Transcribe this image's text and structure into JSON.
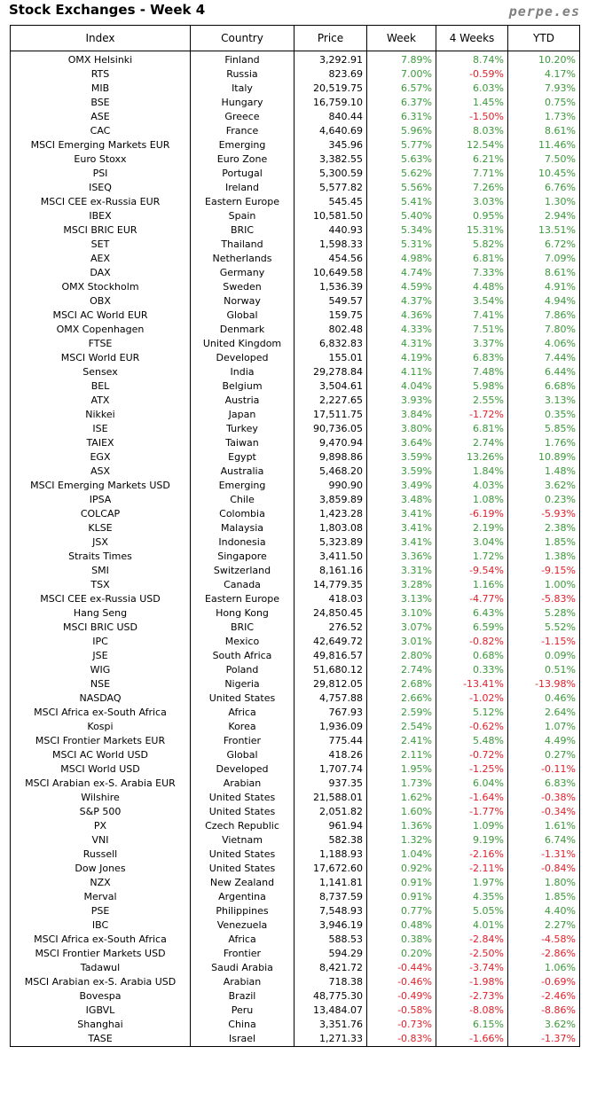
{
  "title": "Stock Exchanges - Week 4",
  "site": "perpe.es",
  "colors": {
    "positive": "#3a9a3a",
    "negative": "#e0202a",
    "site": "#7f7f7f"
  },
  "columns": [
    "Index",
    "Country",
    "Price",
    "Week",
    "4 Weeks",
    "YTD"
  ],
  "rows": [
    [
      "OMX Helsinki",
      "Finland",
      "3,292.91",
      "7.89%",
      "8.74%",
      "10.20%"
    ],
    [
      "RTS",
      "Russia",
      "823.69",
      "7.00%",
      "-0.59%",
      "4.17%"
    ],
    [
      "MIB",
      "Italy",
      "20,519.75",
      "6.57%",
      "6.03%",
      "7.93%"
    ],
    [
      "BSE",
      "Hungary",
      "16,759.10",
      "6.37%",
      "1.45%",
      "0.75%"
    ],
    [
      "ASE",
      "Greece",
      "840.44",
      "6.31%",
      "-1.50%",
      "1.73%"
    ],
    [
      "CAC",
      "France",
      "4,640.69",
      "5.96%",
      "8.03%",
      "8.61%"
    ],
    [
      "MSCI Emerging Markets EUR",
      "Emerging",
      "345.96",
      "5.77%",
      "12.54%",
      "11.46%"
    ],
    [
      "Euro Stoxx",
      "Euro Zone",
      "3,382.55",
      "5.63%",
      "6.21%",
      "7.50%"
    ],
    [
      "PSI",
      "Portugal",
      "5,300.59",
      "5.62%",
      "7.71%",
      "10.45%"
    ],
    [
      "ISEQ",
      "Ireland",
      "5,577.82",
      "5.56%",
      "7.26%",
      "6.76%"
    ],
    [
      "MSCI CEE ex-Russia EUR",
      "Eastern Europe",
      "545.45",
      "5.41%",
      "3.03%",
      "1.30%"
    ],
    [
      "IBEX",
      "Spain",
      "10,581.50",
      "5.40%",
      "0.95%",
      "2.94%"
    ],
    [
      "MSCI BRIC EUR",
      "BRIC",
      "440.93",
      "5.34%",
      "15.31%",
      "13.51%"
    ],
    [
      "SET",
      "Thailand",
      "1,598.33",
      "5.31%",
      "5.82%",
      "6.72%"
    ],
    [
      "AEX",
      "Netherlands",
      "454.56",
      "4.98%",
      "6.81%",
      "7.09%"
    ],
    [
      "DAX",
      "Germany",
      "10,649.58",
      "4.74%",
      "7.33%",
      "8.61%"
    ],
    [
      "OMX Stockholm",
      "Sweden",
      "1,536.39",
      "4.59%",
      "4.48%",
      "4.91%"
    ],
    [
      "OBX",
      "Norway",
      "549.57",
      "4.37%",
      "3.54%",
      "4.94%"
    ],
    [
      "MSCI AC World EUR",
      "Global",
      "159.75",
      "4.36%",
      "7.41%",
      "7.86%"
    ],
    [
      "OMX Copenhagen",
      "Denmark",
      "802.48",
      "4.33%",
      "7.51%",
      "7.80%"
    ],
    [
      "FTSE",
      "United Kingdom",
      "6,832.83",
      "4.31%",
      "3.37%",
      "4.06%"
    ],
    [
      "MSCI World EUR",
      "Developed",
      "155.01",
      "4.19%",
      "6.83%",
      "7.44%"
    ],
    [
      "Sensex",
      "India",
      "29,278.84",
      "4.11%",
      "7.48%",
      "6.44%"
    ],
    [
      "BEL",
      "Belgium",
      "3,504.61",
      "4.04%",
      "5.98%",
      "6.68%"
    ],
    [
      "ATX",
      "Austria",
      "2,227.65",
      "3.93%",
      "2.55%",
      "3.13%"
    ],
    [
      "Nikkei",
      "Japan",
      "17,511.75",
      "3.84%",
      "-1.72%",
      "0.35%"
    ],
    [
      "ISE",
      "Turkey",
      "90,736.05",
      "3.80%",
      "6.81%",
      "5.85%"
    ],
    [
      "TAIEX",
      "Taiwan",
      "9,470.94",
      "3.64%",
      "2.74%",
      "1.76%"
    ],
    [
      "EGX",
      "Egypt",
      "9,898.86",
      "3.59%",
      "13.26%",
      "10.89%"
    ],
    [
      "ASX",
      "Australia",
      "5,468.20",
      "3.59%",
      "1.84%",
      "1.48%"
    ],
    [
      "MSCI Emerging Markets USD",
      "Emerging",
      "990.90",
      "3.49%",
      "4.03%",
      "3.62%"
    ],
    [
      "IPSA",
      "Chile",
      "3,859.89",
      "3.48%",
      "1.08%",
      "0.23%"
    ],
    [
      "COLCAP",
      "Colombia",
      "1,423.28",
      "3.41%",
      "-6.19%",
      "-5.93%"
    ],
    [
      "KLSE",
      "Malaysia",
      "1,803.08",
      "3.41%",
      "2.19%",
      "2.38%"
    ],
    [
      "JSX",
      "Indonesia",
      "5,323.89",
      "3.41%",
      "3.04%",
      "1.85%"
    ],
    [
      "Straits Times",
      "Singapore",
      "3,411.50",
      "3.36%",
      "1.72%",
      "1.38%"
    ],
    [
      "SMI",
      "Switzerland",
      "8,161.16",
      "3.31%",
      "-9.54%",
      "-9.15%"
    ],
    [
      "TSX",
      "Canada",
      "14,779.35",
      "3.28%",
      "1.16%",
      "1.00%"
    ],
    [
      "MSCI CEE ex-Russia USD",
      "Eastern Europe",
      "418.03",
      "3.13%",
      "-4.77%",
      "-5.83%"
    ],
    [
      "Hang Seng",
      "Hong Kong",
      "24,850.45",
      "3.10%",
      "6.43%",
      "5.28%"
    ],
    [
      "MSCI BRIC USD",
      "BRIC",
      "276.52",
      "3.07%",
      "6.59%",
      "5.52%"
    ],
    [
      "IPC",
      "Mexico",
      "42,649.72",
      "3.01%",
      "-0.82%",
      "-1.15%"
    ],
    [
      "JSE",
      "South Africa",
      "49,816.57",
      "2.80%",
      "0.68%",
      "0.09%"
    ],
    [
      "WIG",
      "Poland",
      "51,680.12",
      "2.74%",
      "0.33%",
      "0.51%"
    ],
    [
      "NSE",
      "Nigeria",
      "29,812.05",
      "2.68%",
      "-13.41%",
      "-13.98%"
    ],
    [
      "NASDAQ",
      "United States",
      "4,757.88",
      "2.66%",
      "-1.02%",
      "0.46%"
    ],
    [
      "MSCI Africa ex-South Africa",
      "Africa",
      "767.93",
      "2.59%",
      "5.12%",
      "2.64%"
    ],
    [
      "Kospi",
      "Korea",
      "1,936.09",
      "2.54%",
      "-0.62%",
      "1.07%"
    ],
    [
      "MSCI Frontier Markets EUR",
      "Frontier",
      "775.44",
      "2.41%",
      "5.48%",
      "4.49%"
    ],
    [
      "MSCI AC World USD",
      "Global",
      "418.26",
      "2.11%",
      "-0.72%",
      "0.27%"
    ],
    [
      "MSCI World USD",
      "Developed",
      "1,707.74",
      "1.95%",
      "-1.25%",
      "-0.11%"
    ],
    [
      "MSCI Arabian ex-S. Arabia EUR",
      "Arabian",
      "937.35",
      "1.73%",
      "6.04%",
      "6.83%"
    ],
    [
      "Wilshire",
      "United States",
      "21,588.01",
      "1.62%",
      "-1.64%",
      "-0.38%"
    ],
    [
      "S&P 500",
      "United States",
      "2,051.82",
      "1.60%",
      "-1.77%",
      "-0.34%"
    ],
    [
      "PX",
      "Czech Republic",
      "961.94",
      "1.36%",
      "1.09%",
      "1.61%"
    ],
    [
      "VNI",
      "Vietnam",
      "582.38",
      "1.32%",
      "9.19%",
      "6.74%"
    ],
    [
      "Russell",
      "United States",
      "1,188.93",
      "1.04%",
      "-2.16%",
      "-1.31%"
    ],
    [
      "Dow Jones",
      "United States",
      "17,672.60",
      "0.92%",
      "-2.11%",
      "-0.84%"
    ],
    [
      "NZX",
      "New Zealand",
      "1,141.81",
      "0.91%",
      "1.97%",
      "1.80%"
    ],
    [
      "Merval",
      "Argentina",
      "8,737.59",
      "0.91%",
      "4.35%",
      "1.85%"
    ],
    [
      "PSE",
      "Philippines",
      "7,548.93",
      "0.77%",
      "5.05%",
      "4.40%"
    ],
    [
      "IBC",
      "Venezuela",
      "3,946.19",
      "0.48%",
      "4.01%",
      "2.27%"
    ],
    [
      "MSCI Africa ex-South Africa",
      "Africa",
      "588.53",
      "0.38%",
      "-2.84%",
      "-4.58%"
    ],
    [
      "MSCI Frontier Markets USD",
      "Frontier",
      "594.29",
      "0.20%",
      "-2.50%",
      "-2.86%"
    ],
    [
      "Tadawul",
      "Saudi Arabia",
      "8,421.72",
      "-0.44%",
      "-3.74%",
      "1.06%"
    ],
    [
      "MSCI Arabian ex-S. Arabia USD",
      "Arabian",
      "718.38",
      "-0.46%",
      "-1.98%",
      "-0.69%"
    ],
    [
      "Bovespa",
      "Brazil",
      "48,775.30",
      "-0.49%",
      "-2.73%",
      "-2.46%"
    ],
    [
      "IGBVL",
      "Peru",
      "13,484.07",
      "-0.58%",
      "-8.08%",
      "-8.86%"
    ],
    [
      "Shanghai",
      "China",
      "3,351.76",
      "-0.73%",
      "6.15%",
      "3.62%"
    ],
    [
      "TASE",
      "Israel",
      "1,271.33",
      "-0.83%",
      "-1.66%",
      "-1.37%"
    ]
  ]
}
